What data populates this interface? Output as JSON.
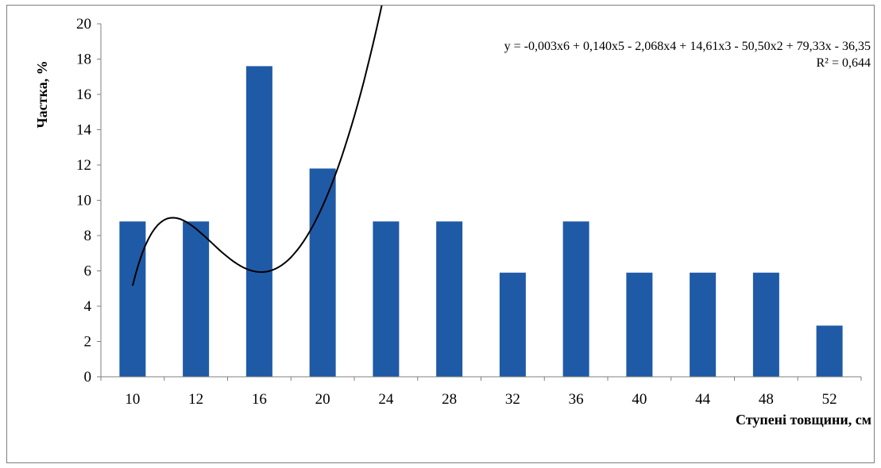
{
  "chart_data": {
    "type": "bar",
    "categories": [
      "10",
      "12",
      "16",
      "20",
      "24",
      "28",
      "32",
      "36",
      "40",
      "44",
      "48",
      "52"
    ],
    "values": [
      8.8,
      8.8,
      17.6,
      11.8,
      8.8,
      8.8,
      5.9,
      8.8,
      5.9,
      5.9,
      5.9,
      2.9
    ],
    "ylim": [
      0,
      20
    ],
    "ylabel": "Частка, %",
    "xlabel": "Ступені товщини, см",
    "y_ticks": [
      "0",
      "2",
      "4",
      "6",
      "8",
      "10",
      "12",
      "14",
      "16",
      "18",
      "20"
    ],
    "grid": false,
    "legend": "none",
    "bar_color": "#1f5aa6",
    "trendline": {
      "type": "polynomial",
      "order": 6,
      "equation": "y = -0,003x6 + 0,140x5 - 2,068x4 + 14,61x3 - 50,50x2 + 79,33x - 36,35",
      "r_squared": "R² = 0,644",
      "color": "#000000"
    }
  }
}
